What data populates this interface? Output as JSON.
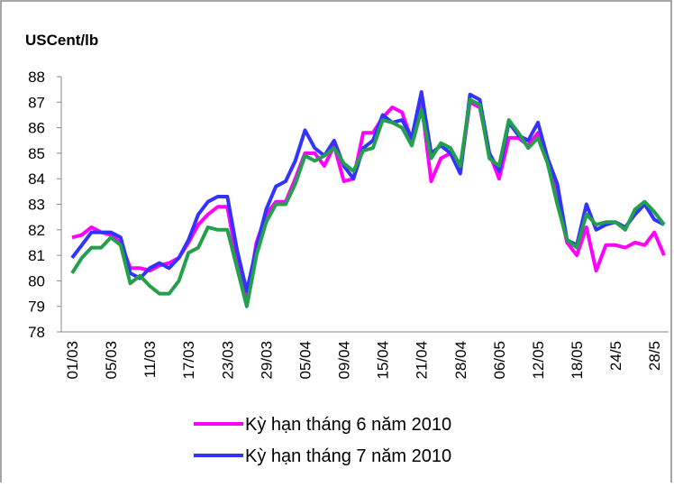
{
  "chart_data": {
    "type": "line",
    "title": "USCent/lb",
    "categories": [
      "01/03",
      null,
      null,
      null,
      "05/03",
      null,
      null,
      null,
      "11/03",
      null,
      null,
      null,
      "17/03",
      null,
      null,
      null,
      "23/03",
      null,
      null,
      null,
      "29/03",
      null,
      null,
      null,
      "05/04",
      null,
      null,
      null,
      "09/04",
      null,
      null,
      null,
      "15/04",
      null,
      null,
      null,
      "21/04",
      null,
      null,
      null,
      "28/04",
      null,
      null,
      null,
      "06/05",
      null,
      null,
      null,
      "12/05",
      null,
      null,
      null,
      "18/05",
      null,
      null,
      null,
      "24/5",
      null,
      null,
      null,
      "28/5",
      null
    ],
    "series": [
      {
        "name": "Kỳ hạn tháng 6 năm 2010",
        "color": "#ff00ff",
        "values": [
          81.7,
          81.8,
          82.1,
          81.9,
          81.8,
          81.5,
          80.5,
          80.5,
          80.4,
          80.6,
          80.7,
          80.9,
          81.5,
          82.2,
          82.6,
          82.9,
          82.9,
          80.8,
          79.2,
          81.5,
          82.6,
          83.1,
          83.1,
          84.0,
          85.0,
          85.0,
          84.5,
          85.3,
          83.9,
          84.0,
          85.8,
          85.8,
          86.4,
          86.8,
          86.6,
          85.5,
          87.0,
          83.9,
          84.8,
          85.0,
          84.3,
          87.0,
          86.8,
          85.0,
          84.0,
          85.6,
          85.6,
          85.3,
          85.8,
          84.8,
          83.2,
          81.5,
          81.0,
          82.1,
          80.4,
          81.4,
          81.4,
          81.3,
          81.5,
          81.4,
          81.9,
          81.0
        ]
      },
      {
        "name": "Kỳ hạn tháng 7 năm 2010",
        "color": "#3333ff",
        "values": [
          80.9,
          81.4,
          81.9,
          81.9,
          81.9,
          81.7,
          80.3,
          80.1,
          80.5,
          80.7,
          80.5,
          80.9,
          81.6,
          82.6,
          83.1,
          83.3,
          83.3,
          81.2,
          79.6,
          81.3,
          82.8,
          83.7,
          83.9,
          84.7,
          85.9,
          85.2,
          84.9,
          85.5,
          84.5,
          84.0,
          85.2,
          85.5,
          86.5,
          86.2,
          86.3,
          85.6,
          87.4,
          85.0,
          85.3,
          85.0,
          84.2,
          87.3,
          87.1,
          85.0,
          84.3,
          86.2,
          85.7,
          85.5,
          86.2,
          84.8,
          83.8,
          81.6,
          81.4,
          83.0,
          82.0,
          82.2,
          82.3,
          82.1,
          82.6,
          83.0,
          82.4,
          82.2
        ]
      },
      {
        "color": "#22a04b",
        "values": [
          80.3,
          80.9,
          81.3,
          81.3,
          81.7,
          81.4,
          79.9,
          80.2,
          79.8,
          79.5,
          79.5,
          80.0,
          81.1,
          81.3,
          82.1,
          82.0,
          82.0,
          80.5,
          79.0,
          81.0,
          82.3,
          83.0,
          83.0,
          83.8,
          84.9,
          84.7,
          84.9,
          85.2,
          84.6,
          84.3,
          85.1,
          85.2,
          86.3,
          86.2,
          86.0,
          85.3,
          86.7,
          84.8,
          85.4,
          85.2,
          84.5,
          87.1,
          86.9,
          84.8,
          84.5,
          86.3,
          85.8,
          85.2,
          85.6,
          84.6,
          83.0,
          81.6,
          81.3,
          82.6,
          82.2,
          82.3,
          82.3,
          82.0,
          82.8,
          83.1,
          82.7,
          82.2
        ]
      }
    ],
    "ylim": [
      78,
      88
    ],
    "yticks": [
      78,
      79,
      80,
      81,
      82,
      83,
      84,
      85,
      86,
      87,
      88
    ]
  }
}
